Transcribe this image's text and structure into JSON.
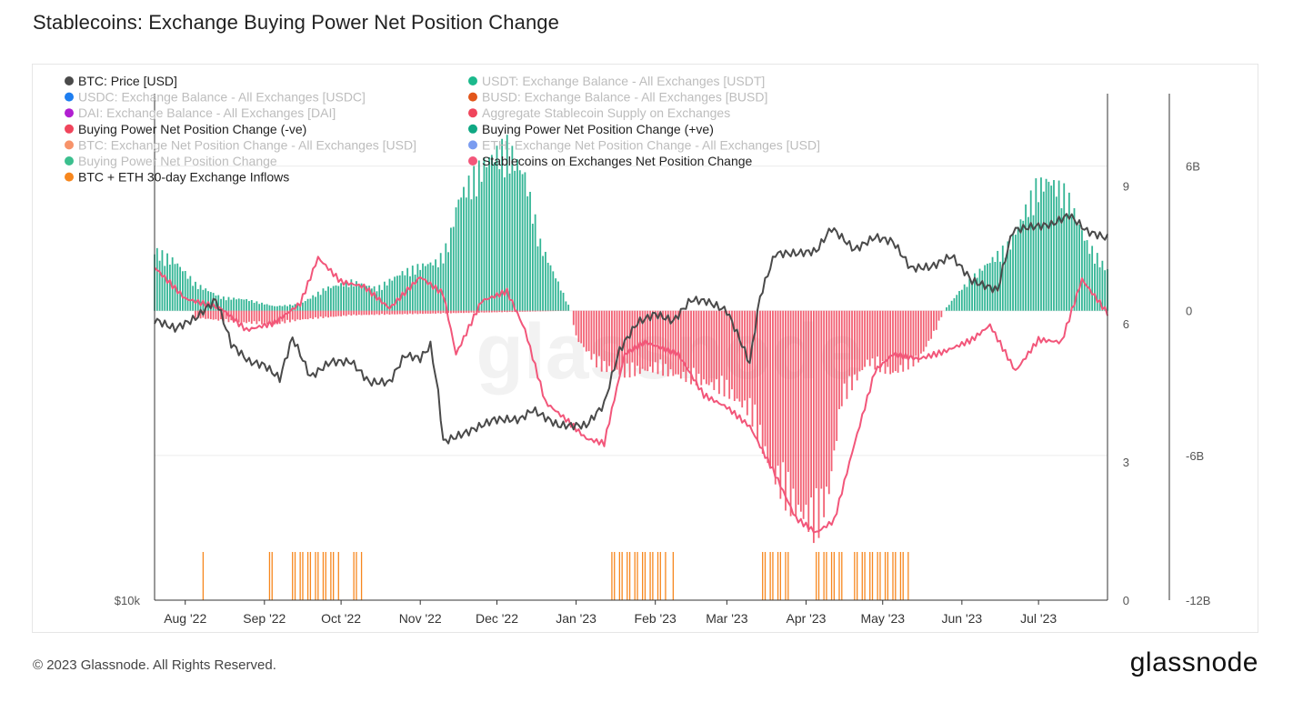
{
  "header": {
    "title": "Stablecoins: Exchange Buying Power Net Position Change"
  },
  "footer": {
    "copyright": "© 2023 Glassnode. All Rights Reserved.",
    "brand": "glassnode"
  },
  "watermark": "glassnode",
  "chart_data": {
    "type": "bar",
    "title": "Stablecoins: Exchange Buying Power Net Position Change",
    "legend_position": "top-left",
    "legend": [
      {
        "label": "BTC: Price [USD]",
        "color": "#4a4a4a",
        "active": true
      },
      {
        "label": "USDT: Exchange Balance - All Exchanges [USDT]",
        "color": "#1bb98c",
        "active": false
      },
      {
        "label": "USDC: Exchange Balance - All Exchanges [USDC]",
        "color": "#1e7ef0",
        "active": false
      },
      {
        "label": "BUSD: Exchange Balance - All Exchanges [BUSD]",
        "color": "#e2561a",
        "active": false
      },
      {
        "label": "DAI: Exchange Balance - All Exchanges [DAI]",
        "color": "#b11fd1",
        "active": false
      },
      {
        "label": "Aggregate Stablecoin Supply on Exchanges",
        "color": "#f0455c",
        "active": false
      },
      {
        "label": "Buying Power Net Position Change (-ve)",
        "color": "#f0455c",
        "active": true
      },
      {
        "label": "Buying Power Net Position Change (+ve)",
        "color": "#0fa883",
        "active": true
      },
      {
        "label": "BTC: Exchange Net Position Change - All Exchanges [USD]",
        "color": "#f7936a",
        "active": false
      },
      {
        "label": "ETH: Exchange Net Position Change - All Exchanges [USD]",
        "color": "#7a9cf0",
        "active": false
      },
      {
        "label": "Buying Power Net Position Change",
        "color": "#3bbf8e",
        "active": false
      },
      {
        "label": "Stablecoins on Exchanges Net Position Change",
        "color": "#f2567a",
        "active": true
      },
      {
        "label": "BTC + ETH 30-day Exchange Inflows",
        "color": "#f7871e",
        "active": true
      }
    ],
    "x_ticks": [
      "Aug '22",
      "Sep '22",
      "Oct '22",
      "Nov '22",
      "Dec '22",
      "Jan '23",
      "Feb '23",
      "Mar '23",
      "Apr '23",
      "May '23",
      "Jun '23",
      "Jul '23"
    ],
    "x_tick_dates": [
      "2022-08-01",
      "2022-09-01",
      "2022-10-01",
      "2022-11-01",
      "2022-12-01",
      "2023-01-01",
      "2023-02-01",
      "2023-03-01",
      "2023-04-01",
      "2023-05-01",
      "2023-06-01",
      "2023-07-01"
    ],
    "x_range": [
      "2022-07-20",
      "2023-07-28"
    ],
    "left_axis": {
      "tick_labels": [
        "$10k"
      ],
      "scale": "log"
    },
    "right_axis_1": {
      "ticks": [
        0,
        3,
        6,
        9
      ],
      "range": [
        0,
        11
      ]
    },
    "right_axis_2": {
      "ticks": [
        "-12B",
        "-6B",
        "0",
        "6B"
      ],
      "values": [
        -12,
        -6,
        0,
        6
      ],
      "range": [
        -12,
        9
      ],
      "unit": "B USD"
    },
    "series": [
      {
        "name": "Buying Power Net Position Change (+ve)",
        "kind": "bars_positive",
        "color": "#0fa883",
        "points": [
          [
            "2022-07-20",
            2.7
          ],
          [
            "2022-07-28",
            2.2
          ],
          [
            "2022-08-05",
            1.2
          ],
          [
            "2022-08-15",
            0.6
          ],
          [
            "2022-08-25",
            0.5
          ],
          [
            "2022-09-05",
            0.2
          ],
          [
            "2022-09-15",
            0.3
          ],
          [
            "2022-09-25",
            1.0
          ],
          [
            "2022-10-05",
            1.3
          ],
          [
            "2022-10-15",
            1.0
          ],
          [
            "2022-10-25",
            1.7
          ],
          [
            "2022-11-01",
            2.0
          ],
          [
            "2022-11-08",
            2.2
          ],
          [
            "2022-11-12",
            3.0
          ],
          [
            "2022-11-16",
            5.0
          ],
          [
            "2022-11-22",
            6.0
          ],
          [
            "2022-11-28",
            6.8
          ],
          [
            "2022-12-05",
            7.3
          ],
          [
            "2022-12-12",
            6.0
          ],
          [
            "2022-12-18",
            3.0
          ],
          [
            "2022-12-24",
            1.5
          ],
          [
            "2022-12-30",
            0.0
          ],
          [
            "2023-05-25",
            0.0
          ],
          [
            "2023-06-01",
            1.0
          ],
          [
            "2023-06-10",
            2.0
          ],
          [
            "2023-06-20",
            3.0
          ],
          [
            "2023-06-30",
            5.5
          ],
          [
            "2023-07-05",
            5.8
          ],
          [
            "2023-07-12",
            5.2
          ],
          [
            "2023-07-20",
            3.0
          ],
          [
            "2023-07-28",
            1.8
          ]
        ]
      },
      {
        "name": "Buying Power Net Position Change (-ve)",
        "kind": "bars_negative",
        "color": "#f0455c",
        "points": [
          [
            "2022-08-05",
            -0.3
          ],
          [
            "2022-08-20",
            -0.5
          ],
          [
            "2022-09-05",
            -0.6
          ],
          [
            "2022-09-15",
            -0.4
          ],
          [
            "2022-10-05",
            -0.2
          ],
          [
            "2022-12-30",
            0.0
          ],
          [
            "2023-01-01",
            -1.2
          ],
          [
            "2023-01-10",
            -2.5
          ],
          [
            "2023-01-20",
            -2.8
          ],
          [
            "2023-02-01",
            -2.6
          ],
          [
            "2023-02-10",
            -2.9
          ],
          [
            "2023-02-20",
            -3.2
          ],
          [
            "2023-03-01",
            -3.6
          ],
          [
            "2023-03-10",
            -4.5
          ],
          [
            "2023-03-18",
            -7.0
          ],
          [
            "2023-03-25",
            -8.5
          ],
          [
            "2023-04-01",
            -9.2
          ],
          [
            "2023-04-05",
            -9.8
          ],
          [
            "2023-04-10",
            -8.0
          ],
          [
            "2023-04-15",
            -4.0
          ],
          [
            "2023-04-25",
            -2.3
          ],
          [
            "2023-05-05",
            -2.8
          ],
          [
            "2023-05-15",
            -2.2
          ],
          [
            "2023-05-22",
            -0.8
          ],
          [
            "2023-05-25",
            0.0
          ]
        ]
      },
      {
        "name": "Stablecoins on Exchanges Net Position Change",
        "kind": "line",
        "color": "#f2567a",
        "axis": "right_2",
        "points": [
          [
            "2022-07-20",
            1.8
          ],
          [
            "2022-08-01",
            0.5
          ],
          [
            "2022-08-15",
            0.1
          ],
          [
            "2022-08-25",
            -0.8
          ],
          [
            "2022-09-05",
            -0.5
          ],
          [
            "2022-09-15",
            0.3
          ],
          [
            "2022-09-22",
            2.2
          ],
          [
            "2022-10-01",
            1.2
          ],
          [
            "2022-10-10",
            1.0
          ],
          [
            "2022-10-20",
            0.1
          ],
          [
            "2022-11-01",
            1.4
          ],
          [
            "2022-11-10",
            0.7
          ],
          [
            "2022-11-15",
            -1.8
          ],
          [
            "2022-11-25",
            0.4
          ],
          [
            "2022-12-05",
            0.8
          ],
          [
            "2022-12-12",
            -0.8
          ],
          [
            "2022-12-20",
            -3.8
          ],
          [
            "2022-12-28",
            -4.5
          ],
          [
            "2023-01-05",
            -5.3
          ],
          [
            "2023-01-12",
            -5.5
          ],
          [
            "2023-01-20",
            -1.8
          ],
          [
            "2023-01-28",
            -1.3
          ],
          [
            "2023-02-10",
            -1.8
          ],
          [
            "2023-02-20",
            -3.5
          ],
          [
            "2023-03-01",
            -4.0
          ],
          [
            "2023-03-10",
            -4.8
          ],
          [
            "2023-03-20",
            -6.8
          ],
          [
            "2023-03-28",
            -8.6
          ],
          [
            "2023-04-05",
            -9.2
          ],
          [
            "2023-04-12",
            -8.7
          ],
          [
            "2023-04-20",
            -5.5
          ],
          [
            "2023-04-28",
            -2.5
          ],
          [
            "2023-05-05",
            -1.8
          ],
          [
            "2023-05-15",
            -2.0
          ],
          [
            "2023-05-25",
            -1.7
          ],
          [
            "2023-06-05",
            -1.2
          ],
          [
            "2023-06-12",
            -0.6
          ],
          [
            "2023-06-22",
            -2.5
          ],
          [
            "2023-07-01",
            -1.2
          ],
          [
            "2023-07-10",
            -1.3
          ],
          [
            "2023-07-18",
            1.3
          ],
          [
            "2023-07-28",
            -0.1
          ]
        ]
      },
      {
        "name": "BTC: Price [USD]",
        "kind": "line",
        "color": "#4a4a4a",
        "axis": "left",
        "points": [
          [
            "2022-07-20",
            23000
          ],
          [
            "2022-07-28",
            22400
          ],
          [
            "2022-08-05",
            23100
          ],
          [
            "2022-08-13",
            24400
          ],
          [
            "2022-08-19",
            21400
          ],
          [
            "2022-08-26",
            20300
          ],
          [
            "2022-09-01",
            20100
          ],
          [
            "2022-09-07",
            19300
          ],
          [
            "2022-09-12",
            21800
          ],
          [
            "2022-09-19",
            19400
          ],
          [
            "2022-09-27",
            20300
          ],
          [
            "2022-10-05",
            20300
          ],
          [
            "2022-10-12",
            19100
          ],
          [
            "2022-10-20",
            19100
          ],
          [
            "2022-10-26",
            20700
          ],
          [
            "2022-11-01",
            20500
          ],
          [
            "2022-11-05",
            21300
          ],
          [
            "2022-11-08",
            18500
          ],
          [
            "2022-11-10",
            16000
          ],
          [
            "2022-11-20",
            16500
          ],
          [
            "2022-11-30",
            17100
          ],
          [
            "2022-12-10",
            17100
          ],
          [
            "2022-12-15",
            17600
          ],
          [
            "2022-12-25",
            16800
          ],
          [
            "2023-01-05",
            16800
          ],
          [
            "2023-01-12",
            17900
          ],
          [
            "2023-01-18",
            21000
          ],
          [
            "2023-01-25",
            22800
          ],
          [
            "2023-02-01",
            23400
          ],
          [
            "2023-02-08",
            22900
          ],
          [
            "2023-02-15",
            24400
          ],
          [
            "2023-02-21",
            24300
          ],
          [
            "2023-03-01",
            23600
          ],
          [
            "2023-03-10",
            20200
          ],
          [
            "2023-03-14",
            24600
          ],
          [
            "2023-03-20",
            28000
          ],
          [
            "2023-03-28",
            28000
          ],
          [
            "2023-04-05",
            28200
          ],
          [
            "2023-04-11",
            30200
          ],
          [
            "2023-04-20",
            28300
          ],
          [
            "2023-04-28",
            29400
          ],
          [
            "2023-05-05",
            29000
          ],
          [
            "2023-05-12",
            26800
          ],
          [
            "2023-05-20",
            26900
          ],
          [
            "2023-05-28",
            27800
          ],
          [
            "2023-06-05",
            25800
          ],
          [
            "2023-06-15",
            25100
          ],
          [
            "2023-06-21",
            30000
          ],
          [
            "2023-06-28",
            30300
          ],
          [
            "2023-07-06",
            30500
          ],
          [
            "2023-07-13",
            31400
          ],
          [
            "2023-07-20",
            29900
          ],
          [
            "2023-07-28",
            29300
          ]
        ]
      },
      {
        "name": "BTC + ETH 30-day Exchange Inflows",
        "kind": "markers",
        "color": "#f7871e",
        "ranges": [
          [
            "2022-08-08",
            "2022-08-09"
          ],
          [
            "2022-09-03",
            "2022-09-05"
          ],
          [
            "2022-09-12",
            "2022-10-01"
          ],
          [
            "2022-10-06",
            "2022-10-09"
          ],
          [
            "2023-01-15",
            "2023-02-06"
          ],
          [
            "2023-02-08",
            "2023-02-09"
          ],
          [
            "2023-03-15",
            "2023-03-26"
          ],
          [
            "2023-04-05",
            "2023-04-16"
          ],
          [
            "2023-04-20",
            "2023-05-12"
          ]
        ]
      }
    ]
  }
}
